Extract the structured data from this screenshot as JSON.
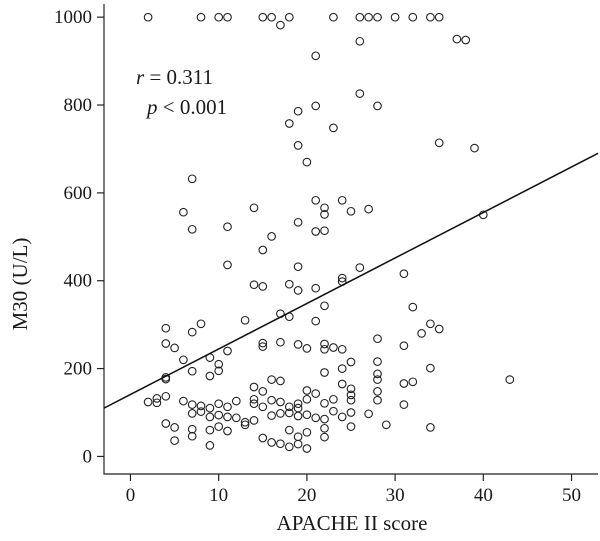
{
  "chart_data": {
    "type": "scatter",
    "title": "",
    "xlabel": "APACHE II score",
    "ylabel": "M30 (U/L)",
    "xlim": [
      -3,
      53
    ],
    "ylim": [
      -40,
      1030
    ],
    "xticks": [
      0,
      10,
      20,
      30,
      40,
      50
    ],
    "yticks": [
      0,
      200,
      400,
      600,
      800,
      1000
    ],
    "grid": false,
    "legend": "none",
    "annotations": {
      "r_symbol": "r",
      "r_rest": " = 0.311",
      "p_symbol": "p",
      "p_rest": " < 0.001"
    },
    "fit_line": {
      "x": [
        -3,
        53
      ],
      "y": [
        110,
        690
      ]
    },
    "points": [
      [
        2,
        1000
      ],
      [
        8,
        1000
      ],
      [
        10,
        1000
      ],
      [
        11,
        1000
      ],
      [
        15,
        1000
      ],
      [
        16,
        1000
      ],
      [
        17,
        982
      ],
      [
        18,
        1000
      ],
      [
        23,
        1000
      ],
      [
        26,
        1000
      ],
      [
        27,
        1000
      ],
      [
        28,
        1000
      ],
      [
        30,
        1000
      ],
      [
        32,
        1000
      ],
      [
        34,
        1000
      ],
      [
        35,
        1000
      ],
      [
        37,
        950
      ],
      [
        38,
        948
      ],
      [
        26,
        945
      ],
      [
        21,
        912
      ],
      [
        26,
        826
      ],
      [
        28,
        798
      ],
      [
        21,
        798
      ],
      [
        19,
        786
      ],
      [
        18,
        758
      ],
      [
        23,
        748
      ],
      [
        35,
        714
      ],
      [
        39,
        702
      ],
      [
        19,
        708
      ],
      [
        20,
        670
      ],
      [
        7,
        632
      ],
      [
        21,
        583
      ],
      [
        24,
        583
      ],
      [
        14,
        566
      ],
      [
        22,
        566
      ],
      [
        22,
        551
      ],
      [
        25,
        558
      ],
      [
        27,
        563
      ],
      [
        6,
        556
      ],
      [
        19,
        533
      ],
      [
        7,
        517
      ],
      [
        11,
        523
      ],
      [
        21,
        512
      ],
      [
        22,
        514
      ],
      [
        16,
        501
      ],
      [
        40,
        550
      ],
      [
        11,
        436
      ],
      [
        15,
        470
      ],
      [
        19,
        432
      ],
      [
        26,
        430
      ],
      [
        31,
        416
      ],
      [
        24,
        406
      ],
      [
        24,
        398
      ],
      [
        14,
        391
      ],
      [
        18,
        392
      ],
      [
        15,
        387
      ],
      [
        19,
        378
      ],
      [
        21,
        383
      ],
      [
        22,
        343
      ],
      [
        32,
        340
      ],
      [
        17,
        325
      ],
      [
        18,
        318
      ],
      [
        21,
        308
      ],
      [
        13,
        310
      ],
      [
        8,
        302
      ],
      [
        34,
        302
      ],
      [
        35,
        290
      ],
      [
        33,
        280
      ],
      [
        4,
        292
      ],
      [
        7,
        283
      ],
      [
        28,
        268
      ],
      [
        4,
        257
      ],
      [
        5,
        247
      ],
      [
        15,
        258
      ],
      [
        15,
        250
      ],
      [
        17,
        260
      ],
      [
        19,
        255
      ],
      [
        22,
        256
      ],
      [
        22,
        244
      ],
      [
        23,
        248
      ],
      [
        24,
        244
      ],
      [
        20,
        246
      ],
      [
        31,
        252
      ],
      [
        11,
        240
      ],
      [
        6,
        220
      ],
      [
        9,
        225
      ],
      [
        25,
        215
      ],
      [
        28,
        216
      ],
      [
        4,
        180
      ],
      [
        9,
        183
      ],
      [
        10,
        210
      ],
      [
        10,
        195
      ],
      [
        7,
        194
      ],
      [
        14,
        158
      ],
      [
        16,
        175
      ],
      [
        17,
        172
      ],
      [
        22,
        191
      ],
      [
        24,
        200
      ],
      [
        28,
        188
      ],
      [
        28,
        175
      ],
      [
        31,
        166
      ],
      [
        32,
        170
      ],
      [
        34,
        201
      ],
      [
        43,
        175
      ],
      [
        4,
        176
      ],
      [
        2,
        124
      ],
      [
        3,
        122
      ],
      [
        3,
        132
      ],
      [
        4,
        137
      ],
      [
        6,
        126
      ],
      [
        7,
        118
      ],
      [
        8,
        115
      ],
      [
        9,
        110
      ],
      [
        10,
        120
      ],
      [
        11,
        113
      ],
      [
        12,
        126
      ],
      [
        14,
        130
      ],
      [
        15,
        148
      ],
      [
        14,
        120
      ],
      [
        15,
        113
      ],
      [
        16,
        128
      ],
      [
        17,
        124
      ],
      [
        18,
        113
      ],
      [
        19,
        120
      ],
      [
        19,
        110
      ],
      [
        20,
        150
      ],
      [
        20,
        130
      ],
      [
        21,
        143
      ],
      [
        22,
        121
      ],
      [
        23,
        130
      ],
      [
        24,
        165
      ],
      [
        25,
        154
      ],
      [
        25,
        140
      ],
      [
        25,
        128
      ],
      [
        28,
        148
      ],
      [
        28,
        128
      ],
      [
        31,
        118
      ],
      [
        7,
        98
      ],
      [
        8,
        102
      ],
      [
        9,
        90
      ],
      [
        10,
        94
      ],
      [
        11,
        90
      ],
      [
        12,
        88
      ],
      [
        13,
        78
      ],
      [
        14,
        82
      ],
      [
        16,
        93
      ],
      [
        17,
        98
      ],
      [
        18,
        99
      ],
      [
        19,
        92
      ],
      [
        20,
        95
      ],
      [
        21,
        88
      ],
      [
        22,
        85
      ],
      [
        23,
        103
      ],
      [
        24,
        90
      ],
      [
        25,
        100
      ],
      [
        27,
        97
      ],
      [
        4,
        75
      ],
      [
        5,
        66
      ],
      [
        7,
        62
      ],
      [
        9,
        60
      ],
      [
        10,
        68
      ],
      [
        11,
        58
      ],
      [
        13,
        72
      ],
      [
        18,
        60
      ],
      [
        20,
        55
      ],
      [
        22,
        64
      ],
      [
        25,
        68
      ],
      [
        29,
        72
      ],
      [
        34,
        66
      ],
      [
        5,
        36
      ],
      [
        7,
        46
      ],
      [
        9,
        25
      ],
      [
        16,
        32
      ],
      [
        17,
        29
      ],
      [
        18,
        22
      ],
      [
        19,
        28
      ],
      [
        20,
        18
      ],
      [
        22,
        44
      ],
      [
        19,
        45
      ],
      [
        15,
        42
      ]
    ]
  }
}
